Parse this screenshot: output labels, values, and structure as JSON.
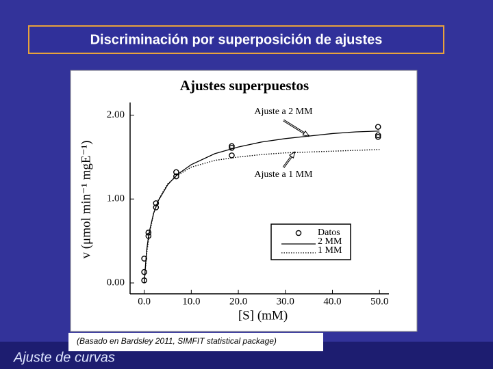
{
  "slide_title": "Discriminación por superposición de ajustes",
  "caption": "(Basado en Bardsley 2011, SIMFIT statistical package)",
  "footer": "Ajuste de curvas",
  "chart_data": {
    "type": "scatter",
    "title": "Ajustes superpuestos",
    "xlabel": "[S] (mM)",
    "ylabel": "v (μmol min⁻¹ mgE⁻¹)",
    "xlim": [
      -3,
      52
    ],
    "ylim": [
      -0.13,
      2.15
    ],
    "xticks": [
      {
        "value": 0,
        "label": "0.0"
      },
      {
        "value": 10,
        "label": "10.0"
      },
      {
        "value": 20,
        "label": "20.0"
      },
      {
        "value": 30,
        "label": "30.0"
      },
      {
        "value": 40,
        "label": "40.0"
      },
      {
        "value": 50,
        "label": "50.0"
      }
    ],
    "yticks": [
      {
        "value": 0,
        "label": "0.00"
      },
      {
        "value": 1,
        "label": "1.00"
      },
      {
        "value": 2,
        "label": "2.00"
      }
    ],
    "legend": "lower right",
    "series": [
      {
        "name": "Datos",
        "type": "scatter",
        "color": "#000000",
        "x": [
          0,
          0,
          0,
          0.9,
          0.9,
          2.5,
          2.5,
          6.8,
          6.8,
          18.6,
          18.6,
          18.6,
          49.7,
          49.7,
          49.7
        ],
        "values": [
          0.03,
          0.13,
          0.29,
          0.56,
          0.6,
          0.9,
          0.95,
          1.27,
          1.32,
          1.52,
          1.61,
          1.63,
          1.74,
          1.76,
          1.86
        ]
      },
      {
        "name": "2 MM",
        "type": "line",
        "style": "solid",
        "color": "#000000",
        "x": [
          0,
          0.5,
          1,
          2,
          3,
          5,
          7,
          10,
          15,
          20,
          25,
          30,
          35,
          40,
          45,
          50
        ],
        "values": [
          0,
          0.38,
          0.59,
          0.83,
          0.98,
          1.17,
          1.29,
          1.41,
          1.54,
          1.62,
          1.68,
          1.72,
          1.75,
          1.78,
          1.8,
          1.81
        ]
      },
      {
        "name": "1 MM",
        "type": "line",
        "style": "dotted",
        "color": "#000000",
        "x": [
          0,
          0.5,
          1,
          2,
          3,
          5,
          7,
          10,
          15,
          20,
          25,
          30,
          35,
          40,
          45,
          50
        ],
        "values": [
          0,
          0.33,
          0.55,
          0.83,
          0.99,
          1.18,
          1.28,
          1.38,
          1.46,
          1.5,
          1.53,
          1.55,
          1.56,
          1.57,
          1.58,
          1.59
        ]
      }
    ],
    "annotations": [
      {
        "text": "Ajuste a 2 MM",
        "x": 35,
        "y": 1.75
      },
      {
        "text": "Ajuste a 1 MM",
        "x": 32,
        "y": 1.56
      }
    ]
  }
}
